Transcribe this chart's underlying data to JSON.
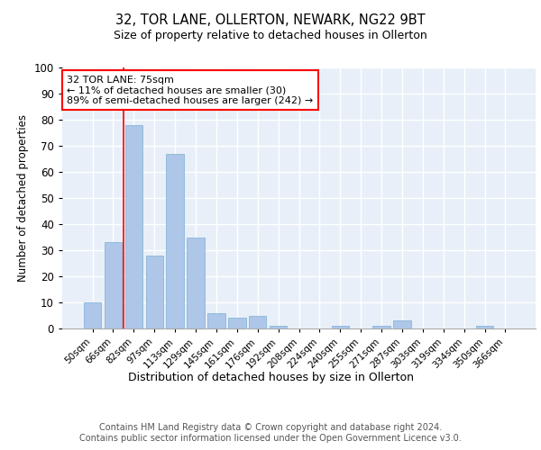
{
  "title1": "32, TOR LANE, OLLERTON, NEWARK, NG22 9BT",
  "title2": "Size of property relative to detached houses in Ollerton",
  "xlabel": "Distribution of detached houses by size in Ollerton",
  "ylabel": "Number of detached properties",
  "categories": [
    "50sqm",
    "66sqm",
    "82sqm",
    "97sqm",
    "113sqm",
    "129sqm",
    "145sqm",
    "161sqm",
    "176sqm",
    "192sqm",
    "208sqm",
    "224sqm",
    "240sqm",
    "255sqm",
    "271sqm",
    "287sqm",
    "303sqm",
    "319sqm",
    "334sqm",
    "350sqm",
    "366sqm"
  ],
  "values": [
    10,
    33,
    78,
    28,
    67,
    35,
    6,
    4,
    5,
    1,
    0,
    0,
    1,
    0,
    1,
    3,
    0,
    0,
    0,
    1,
    0
  ],
  "bar_color": "#aec6e8",
  "bar_edge_color": "#7aafd4",
  "background_color": "#e8eff8",
  "grid_color": "#ffffff",
  "annotation_box_text": "32 TOR LANE: 75sqm\n← 11% of detached houses are smaller (30)\n89% of semi-detached houses are larger (242) →",
  "ylim": [
    0,
    100
  ],
  "yticks": [
    0,
    10,
    20,
    30,
    40,
    50,
    60,
    70,
    80,
    90,
    100
  ],
  "footer1": "Contains HM Land Registry data © Crown copyright and database right 2024.",
  "footer2": "Contains public sector information licensed under the Open Government Licence v3.0.",
  "red_line_x": 1.5
}
